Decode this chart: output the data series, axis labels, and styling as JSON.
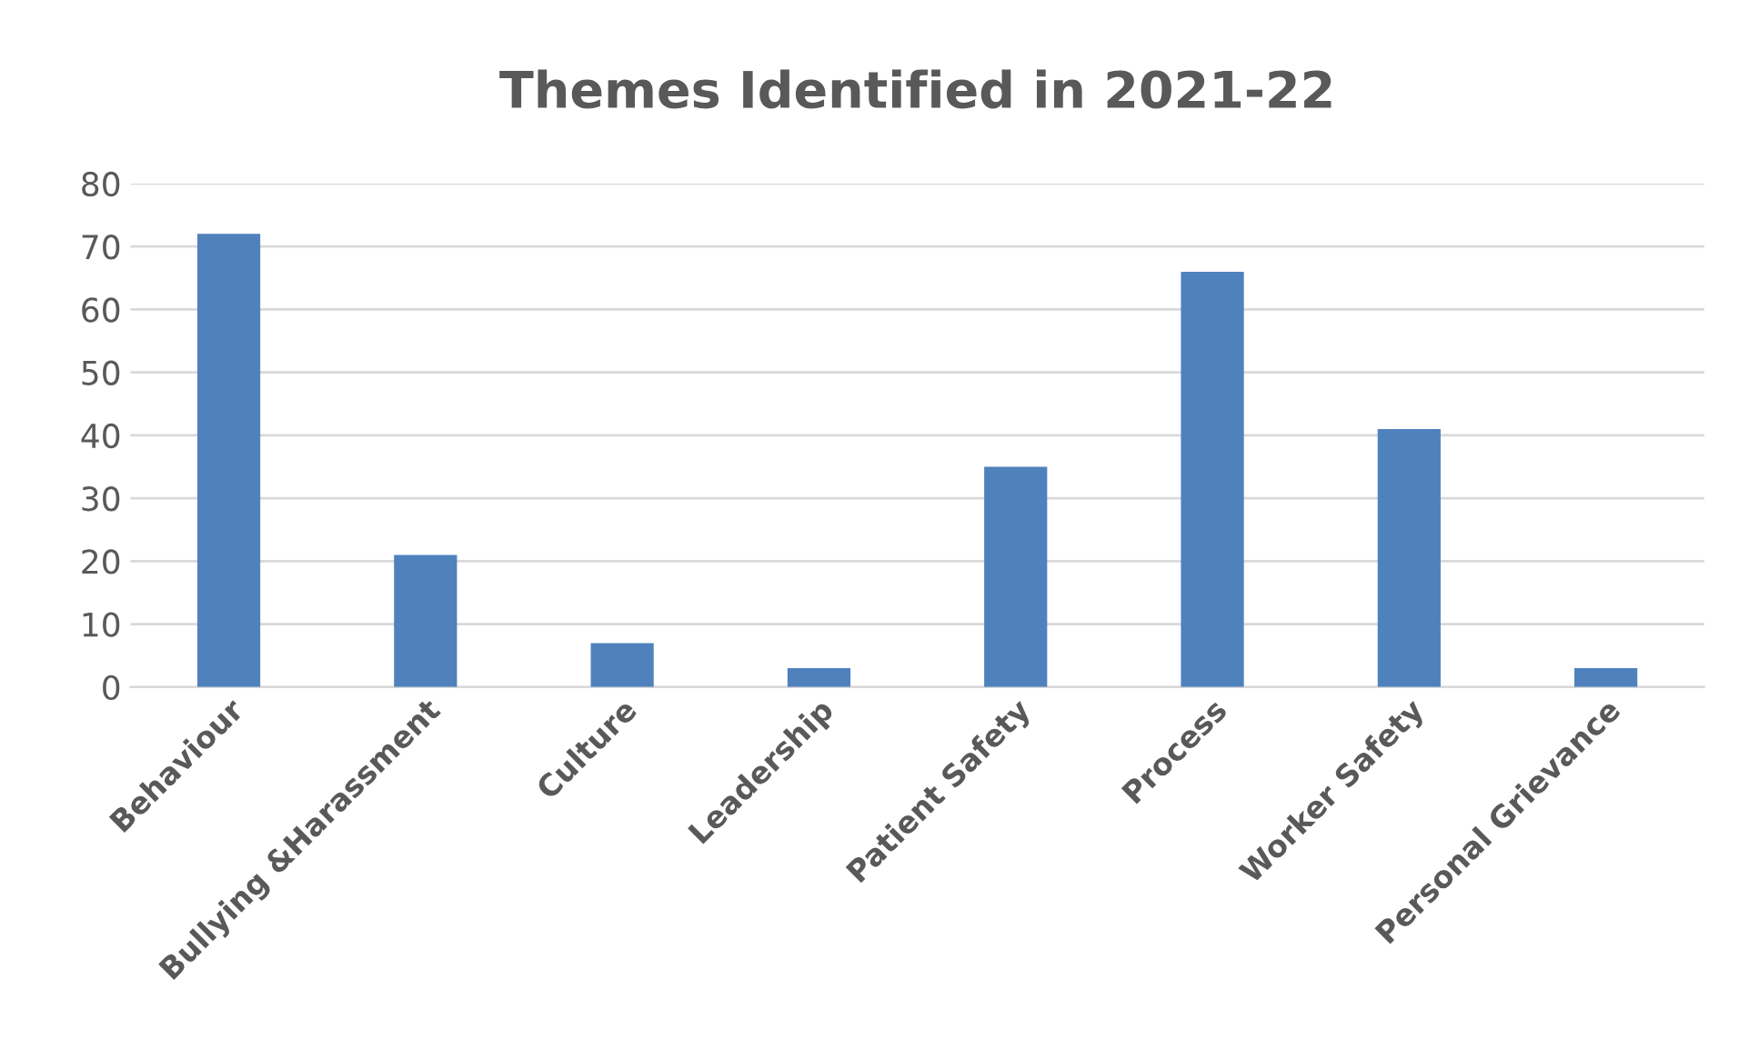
{
  "chart_data": {
    "type": "bar",
    "title": "Themes Identified in 2021-22",
    "categories": [
      "Behaviour",
      "Bullying &Harassment",
      "Culture",
      "Leadership",
      "Patient Safety",
      "Process",
      "Worker Safety",
      "Personal Grievance"
    ],
    "values": [
      72,
      21,
      7,
      3,
      35,
      66,
      41,
      3
    ],
    "color": "#4f81bd",
    "ylim": [
      0,
      80
    ],
    "yticks": [
      0,
      10,
      20,
      30,
      40,
      50,
      60,
      70,
      80
    ],
    "grid": "y",
    "legend": false
  }
}
